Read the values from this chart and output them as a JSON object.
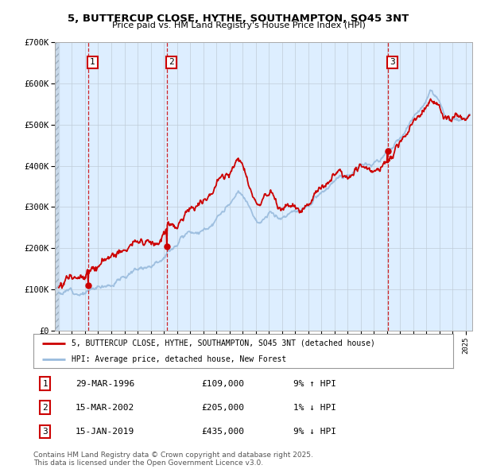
{
  "title": "5, BUTTERCUP CLOSE, HYTHE, SOUTHAMPTON, SO45 3NT",
  "subtitle": "Price paid vs. HM Land Registry's House Price Index (HPI)",
  "ylim": [
    0,
    700000
  ],
  "yticks": [
    0,
    100000,
    200000,
    300000,
    400000,
    500000,
    600000,
    700000
  ],
  "ytick_labels": [
    "£0",
    "£100K",
    "£200K",
    "£300K",
    "£400K",
    "£500K",
    "£600K",
    "£700K"
  ],
  "xlim_start": 1993.7,
  "xlim_end": 2025.5,
  "background_color": "#ffffff",
  "plot_bg_color": "#ddeeff",
  "sale_color": "#cc0000",
  "hpi_color": "#99bbdd",
  "grid_color": "#c0ccd8",
  "legend_sale_label": "5, BUTTERCUP CLOSE, HYTHE, SOUTHAMPTON, SO45 3NT (detached house)",
  "legend_hpi_label": "HPI: Average price, detached house, New Forest",
  "transactions": [
    {
      "label": "1",
      "date_x": 1996.22,
      "price": 109000,
      "note": "29-MAR-1996",
      "amount": "£109,000",
      "pct": "9% ↑ HPI"
    },
    {
      "label": "2",
      "date_x": 2002.22,
      "price": 205000,
      "note": "15-MAR-2002",
      "amount": "£205,000",
      "pct": "1% ↓ HPI"
    },
    {
      "label": "3",
      "date_x": 2019.05,
      "price": 435000,
      "note": "15-JAN-2019",
      "amount": "£435,000",
      "pct": "9% ↓ HPI"
    }
  ],
  "footer": "Contains HM Land Registry data © Crown copyright and database right 2025.\nThis data is licensed under the Open Government Licence v3.0."
}
